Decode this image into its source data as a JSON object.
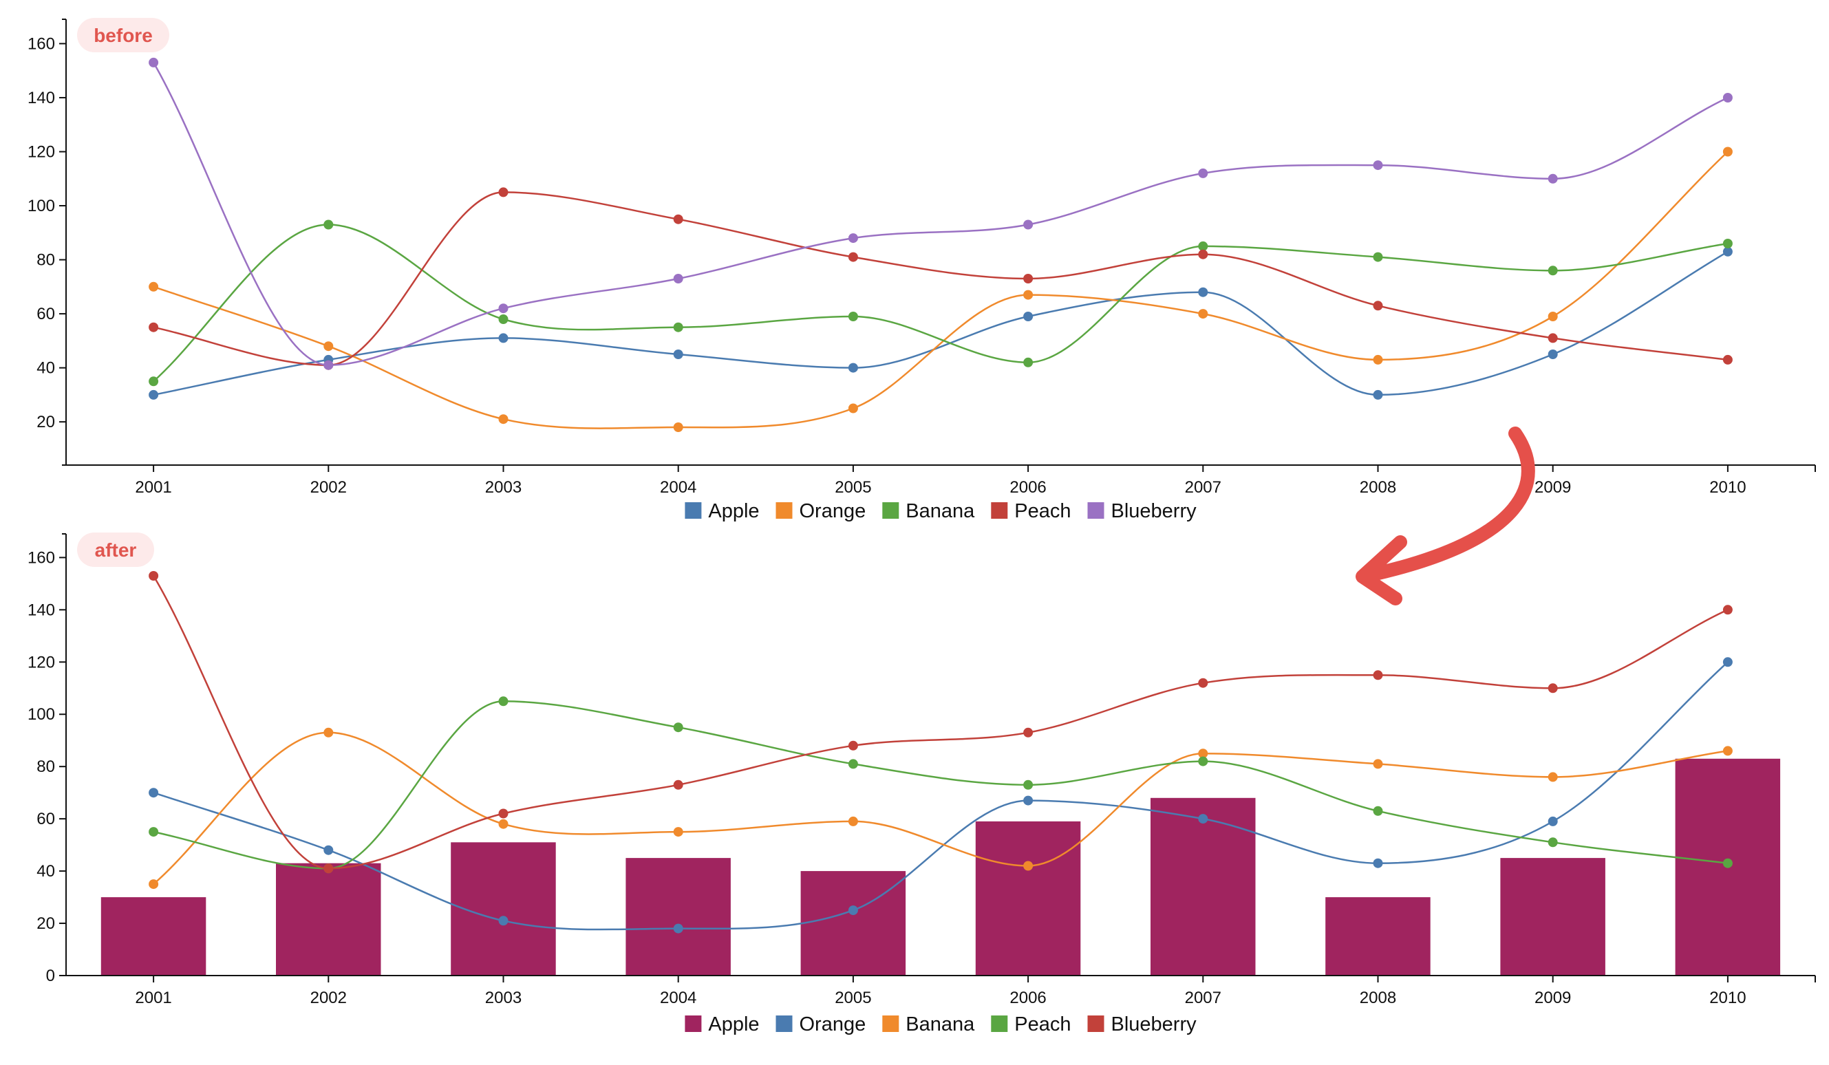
{
  "colors": {
    "apple_bar": "#a0245f",
    "blue": "#4a7bb0",
    "orange": "#f08a2c",
    "green": "#5aa642",
    "red": "#c2413a",
    "purple": "#9a71c3",
    "badge_bg": "#fdeaea",
    "badge_text": "#e0564f",
    "arrow": "#e5504a",
    "axis": "#111111"
  },
  "chart_data": [
    {
      "type": "line",
      "badge": "before",
      "x": [
        "2001",
        "2002",
        "2003",
        "2004",
        "2005",
        "2006",
        "2007",
        "2008",
        "2009",
        "2010"
      ],
      "yticks": [
        20,
        40,
        60,
        80,
        100,
        120,
        140,
        160
      ],
      "ylim": [
        4,
        168
      ],
      "grid": false,
      "legend_position": "bottom-center",
      "series": [
        {
          "name": "Apple",
          "color": "#4a7bb0",
          "mark": "line",
          "values": [
            30,
            43,
            51,
            45,
            40,
            59,
            68,
            30,
            45,
            83
          ]
        },
        {
          "name": "Orange",
          "color": "#f08a2c",
          "mark": "line",
          "values": [
            70,
            48,
            21,
            18,
            25,
            67,
            60,
            43,
            59,
            120
          ]
        },
        {
          "name": "Banana",
          "color": "#5aa642",
          "mark": "line",
          "values": [
            35,
            93,
            58,
            55,
            59,
            42,
            85,
            81,
            76,
            86
          ]
        },
        {
          "name": "Peach",
          "color": "#c2413a",
          "mark": "line",
          "values": [
            55,
            41,
            105,
            95,
            81,
            73,
            82,
            63,
            51,
            43
          ]
        },
        {
          "name": "Blueberry",
          "color": "#9a71c3",
          "mark": "line",
          "values": [
            153,
            41,
            62,
            73,
            88,
            93,
            112,
            115,
            110,
            140
          ]
        }
      ]
    },
    {
      "type": "bar+line",
      "badge": "after",
      "x": [
        "2001",
        "2002",
        "2003",
        "2004",
        "2005",
        "2006",
        "2007",
        "2008",
        "2009",
        "2010"
      ],
      "yticks": [
        0,
        20,
        40,
        60,
        80,
        100,
        120,
        140,
        160
      ],
      "ylim": [
        0,
        168
      ],
      "grid": false,
      "legend_position": "bottom-center",
      "series": [
        {
          "name": "Apple",
          "color": "#a0245f",
          "mark": "bar",
          "values": [
            30,
            43,
            51,
            45,
            40,
            59,
            68,
            30,
            45,
            83
          ]
        },
        {
          "name": "Orange",
          "color": "#4a7bb0",
          "mark": "line",
          "values": [
            70,
            48,
            21,
            18,
            25,
            67,
            60,
            43,
            59,
            120
          ]
        },
        {
          "name": "Banana",
          "color": "#f08a2c",
          "mark": "line",
          "values": [
            35,
            93,
            58,
            55,
            59,
            42,
            85,
            81,
            76,
            86
          ]
        },
        {
          "name": "Peach",
          "color": "#5aa642",
          "mark": "line",
          "values": [
            55,
            41,
            105,
            95,
            81,
            73,
            82,
            63,
            51,
            43
          ]
        },
        {
          "name": "Blueberry",
          "color": "#c2413a",
          "mark": "line",
          "values": [
            153,
            41,
            62,
            73,
            88,
            93,
            112,
            115,
            110,
            140
          ]
        }
      ]
    }
  ]
}
